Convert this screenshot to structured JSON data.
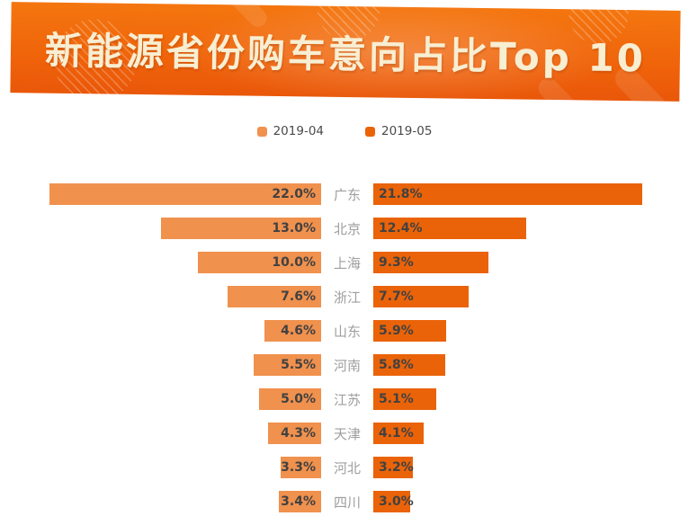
{
  "header": {
    "title": "新能源省份购车意向占比Top 10"
  },
  "legend": [
    {
      "label": "2019-04",
      "color": "#f0914e"
    },
    {
      "label": "2019-05",
      "color": "#ea6309"
    }
  ],
  "chart_data": {
    "type": "bar",
    "variant": "tornado-horizontal",
    "title": "新能源省份购车意向占比Top 10",
    "categories": [
      "广东",
      "北京",
      "上海",
      "浙江",
      "山东",
      "河南",
      "江苏",
      "天津",
      "河北",
      "四川"
    ],
    "series": [
      {
        "name": "2019-04",
        "color": "#f0914e",
        "side": "left",
        "values": [
          22.0,
          13.0,
          10.0,
          7.6,
          4.6,
          5.5,
          5.0,
          4.3,
          3.3,
          3.4
        ],
        "labels": [
          "22.0%",
          "13.0%",
          "10.0%",
          "7.6%",
          "4.6%",
          "5.5%",
          "5.0%",
          "4.3%",
          "3.3%",
          "3.4%"
        ]
      },
      {
        "name": "2019-05",
        "color": "#ea6309",
        "side": "right",
        "values": [
          21.8,
          12.4,
          9.3,
          7.7,
          5.9,
          5.8,
          5.1,
          4.1,
          3.2,
          3.0
        ],
        "labels": [
          "21.8%",
          "12.4%",
          "9.3%",
          "7.7%",
          "5.9%",
          "5.8%",
          "5.1%",
          "4.1%",
          "3.2%",
          "3.0%"
        ]
      }
    ],
    "value_unit": "%",
    "xlim": [
      0,
      22.5
    ],
    "grid": false,
    "legend_position": "top-center",
    "label_position": "inside-end-toward-center",
    "category_label_color": "#9e9e9e",
    "value_label_color": "#414141"
  }
}
